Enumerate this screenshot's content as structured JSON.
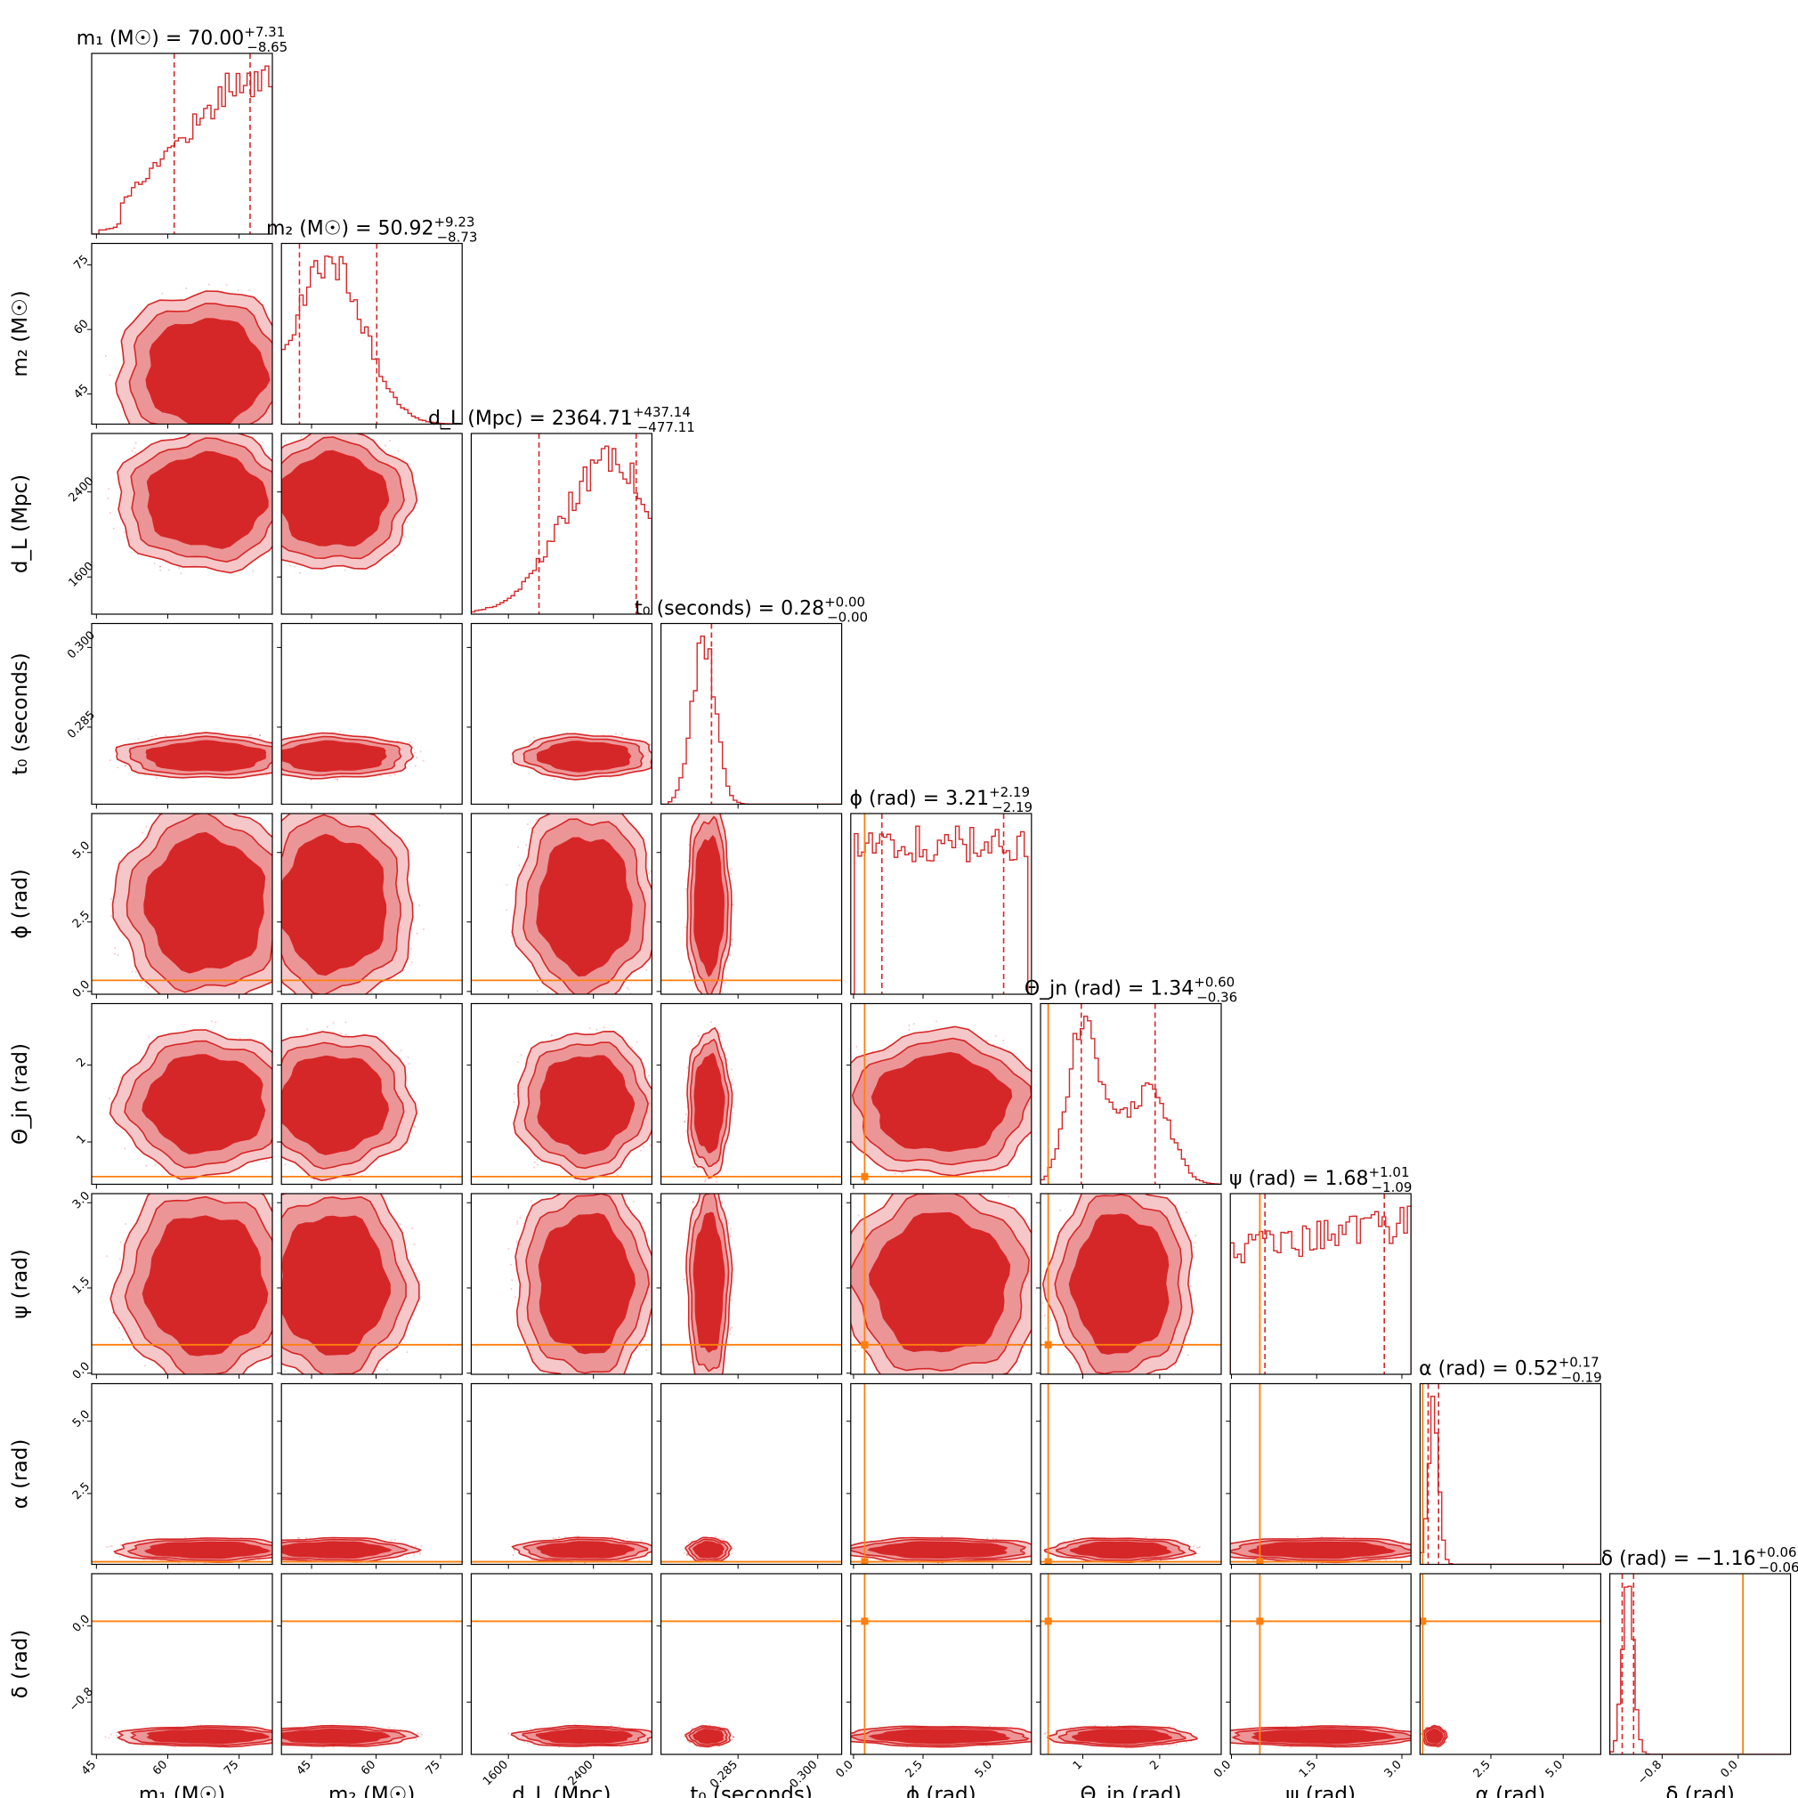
{
  "chart_data": {
    "type": "corner",
    "colors": {
      "posterior": "#d62728",
      "truth": "#ff7f0e"
    },
    "parameters": [
      {
        "id": "m1",
        "axis_label": "m₁ (M☉)",
        "title": "m₁ (M☉) = 70.00",
        "median": 70.0,
        "plus": "+7.31",
        "minus": "−8.65",
        "range": [
          44,
          82
        ],
        "ticks": [
          45,
          60,
          75
        ],
        "tick_labels": [
          "45",
          "60",
          "75"
        ],
        "truth": null
      },
      {
        "id": "m2",
        "axis_label": "m₂ (M☉)",
        "title": "m₂ (M☉) = 50.92",
        "median": 50.92,
        "plus": "+9.23",
        "minus": "−8.73",
        "range": [
          38,
          80
        ],
        "ticks": [
          45,
          60,
          75
        ],
        "tick_labels": [
          "45",
          "60",
          "75"
        ],
        "truth": null
      },
      {
        "id": "dL",
        "axis_label": "d_L (Mpc)",
        "title": "d_L (Mpc) = 2364.71",
        "median": 2364.71,
        "plus": "+437.14",
        "minus": "−477.11",
        "range": [
          1250,
          2950
        ],
        "ticks": [
          1600,
          2400
        ],
        "tick_labels": [
          "1600",
          "2400"
        ],
        "truth": null
      },
      {
        "id": "t0",
        "axis_label": "t₀ (seconds)",
        "title": "t₀ (seconds) = 0.28",
        "median": 0.28,
        "plus": "+0.00",
        "minus": "−0.00",
        "range": [
          0.2705,
          0.3045
        ],
        "ticks": [
          0.285,
          0.3
        ],
        "tick_labels": [
          "0.285",
          "0.300"
        ],
        "truth": null
      },
      {
        "id": "phi",
        "axis_label": "ϕ (rad)",
        "title": "ϕ (rad) = 3.21",
        "median": 3.21,
        "plus": "+2.19",
        "minus": "−2.19",
        "range": [
          -0.1,
          6.4
        ],
        "ticks": [
          0,
          2.5,
          5
        ],
        "tick_labels": [
          "0.0",
          "2.5",
          "5.0"
        ],
        "truth": 0.4
      },
      {
        "id": "theta",
        "axis_label": "Θ_jn (rad)",
        "title": "Θ_jn (rad) = 1.34",
        "median": 1.34,
        "plus": "+0.60",
        "minus": "−0.36",
        "range": [
          0.45,
          2.8
        ],
        "ticks": [
          1,
          2
        ],
        "tick_labels": [
          "1",
          "2"
        ],
        "truth": 0.55
      },
      {
        "id": "psi",
        "axis_label": "ψ (rad)",
        "title": "ψ (rad) = 1.68",
        "median": 1.68,
        "plus": "+1.01",
        "minus": "−1.09",
        "range": [
          -0.02,
          3.16
        ],
        "ticks": [
          0,
          1.5,
          3
        ],
        "tick_labels": [
          "0.0",
          "1.5",
          "3.0"
        ],
        "truth": 0.5
      },
      {
        "id": "alpha",
        "axis_label": "α (rad)",
        "title": "α (rad) = 0.52",
        "median": 0.52,
        "plus": "+0.17",
        "minus": "−0.19",
        "range": [
          0.05,
          6.3
        ],
        "ticks": [
          2.5,
          5
        ],
        "tick_labels": [
          "2.5",
          "5.0"
        ],
        "truth": 0.14
      },
      {
        "id": "delta",
        "axis_label": "δ (rad)",
        "title": "δ (rad) = −1.16",
        "median": -1.16,
        "plus": "+0.06",
        "minus": "−0.06",
        "range": [
          -1.35,
          0.55
        ],
        "ticks": [
          -0.8,
          0
        ],
        "tick_labels": [
          "−0.8",
          "0.0"
        ],
        "truth": 0.05
      }
    ]
  }
}
